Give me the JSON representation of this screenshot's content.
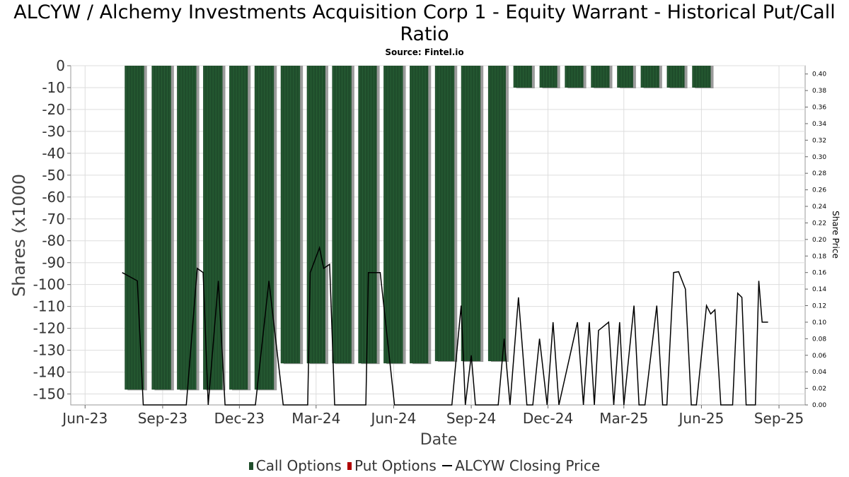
{
  "title": "ALCYW / Alchemy Investments Acquisition Corp 1 - Equity Warrant - Historical Put/Call Ratio",
  "subtitle": "Source: Fintel.io",
  "legend": {
    "call": "Call Options",
    "put": "Put Options",
    "price": "ALCYW Closing Price"
  },
  "colors": {
    "call": "#1f4d2b",
    "put": "#b00000",
    "price": "#000000",
    "grid": "#dddddd"
  },
  "chart_data": {
    "type": "bar",
    "title": "ALCYW / Alchemy Investments Acquisition Corp 1 - Equity Warrant - Historical Put/Call Ratio",
    "xlabel": "Date",
    "ylabel": "Shares (x1000",
    "y2label": "Share Price",
    "ylim": [
      -155,
      0
    ],
    "y2lim": [
      0,
      0.41
    ],
    "xlim": [
      "2023-05-15",
      "2025-10-02"
    ],
    "x_ticks": [
      "Jun-23",
      "Sep-23",
      "Dec-23",
      "Mar-24",
      "Jun-24",
      "Sep-24",
      "Dec-24",
      "Mar-25",
      "Jun-25",
      "Sep-25"
    ],
    "x_tick_dates": [
      "2023-06-01",
      "2023-09-01",
      "2023-12-01",
      "2024-03-01",
      "2024-06-01",
      "2024-09-01",
      "2024-12-01",
      "2025-03-01",
      "2025-06-01",
      "2025-09-01"
    ],
    "y_ticks": [
      0,
      -10,
      -20,
      -30,
      -40,
      -50,
      -60,
      -70,
      -80,
      -90,
      -100,
      -110,
      -120,
      -130,
      -140,
      -150
    ],
    "y2_ticks": [
      "0.00",
      "0.02",
      "0.04",
      "0.06",
      "0.08",
      "0.10",
      "0.12",
      "0.14",
      "0.16",
      "0.18",
      "0.20",
      "0.22",
      "0.24",
      "0.26",
      "0.28",
      "0.30",
      "0.32",
      "0.34",
      "0.36",
      "0.38",
      "0.40"
    ],
    "grid": true,
    "series": [
      {
        "name": "Call Options",
        "type": "bar",
        "start_dates": [
          "2023-07-18",
          "2023-08-19",
          "2023-09-18",
          "2023-10-19",
          "2023-11-19",
          "2023-12-19",
          "2024-01-19",
          "2024-02-19",
          "2024-03-20",
          "2024-04-20",
          "2024-05-20",
          "2024-06-20",
          "2024-07-20",
          "2024-08-20",
          "2024-09-21",
          "2024-10-21",
          "2024-11-21",
          "2024-12-21",
          "2025-01-21",
          "2025-02-21",
          "2025-03-21",
          "2025-04-21",
          "2025-05-21"
        ],
        "end_dates": [
          "2023-08-10",
          "2023-09-11",
          "2023-10-11",
          "2023-11-11",
          "2023-12-11",
          "2024-01-11",
          "2024-02-11",
          "2024-03-12",
          "2024-04-12",
          "2024-05-12",
          "2024-06-12",
          "2024-07-12",
          "2024-08-12",
          "2024-09-12",
          "2024-10-12",
          "2024-11-12",
          "2024-12-12",
          "2025-01-12",
          "2025-02-12",
          "2025-03-12",
          "2025-04-12",
          "2025-05-12",
          "2025-06-12"
        ],
        "values": [
          -148,
          -148,
          -148,
          -148,
          -148,
          -148,
          -136,
          -136,
          -136,
          -136,
          -136,
          -136,
          -135,
          -135,
          -135,
          -10,
          -10,
          -10,
          -10,
          -10,
          -10,
          -10,
          -10
        ]
      },
      {
        "name": "Put Options",
        "type": "bar",
        "values": []
      },
      {
        "name": "ALCYW Closing Price",
        "type": "line",
        "axis": "right",
        "x": [
          "2023-07-15",
          "2023-08-02",
          "2023-08-09",
          "2023-08-30",
          "2023-09-29",
          "2023-10-12",
          "2023-10-19",
          "2023-10-25",
          "2023-11-06",
          "2023-11-14",
          "2023-11-30",
          "2023-12-20",
          "2024-01-05",
          "2024-01-22",
          "2024-02-20",
          "2024-02-23",
          "2024-03-05",
          "2024-03-10",
          "2024-03-17",
          "2024-03-23",
          "2024-04-29",
          "2024-05-02",
          "2024-05-16",
          "2024-06-02",
          "2024-06-25",
          "2024-07-20",
          "2024-08-09",
          "2024-08-20",
          "2024-08-25",
          "2024-09-01",
          "2024-09-06",
          "2024-10-03",
          "2024-10-10",
          "2024-10-17",
          "2024-10-27",
          "2024-11-06",
          "2024-11-13",
          "2024-11-21",
          "2024-11-30",
          "2024-12-07",
          "2024-12-14",
          "2025-01-05",
          "2025-01-12",
          "2025-01-19",
          "2025-01-25",
          "2025-01-30",
          "2025-02-11",
          "2025-02-17",
          "2025-02-24",
          "2025-03-01",
          "2025-03-13",
          "2025-03-19",
          "2025-03-26",
          "2025-04-09",
          "2025-04-16",
          "2025-04-21",
          "2025-04-29",
          "2025-05-05",
          "2025-05-13",
          "2025-05-20",
          "2025-05-26",
          "2025-06-07",
          "2025-06-12",
          "2025-06-17",
          "2025-06-24",
          "2025-07-08",
          "2025-07-14",
          "2025-07-19",
          "2025-07-24",
          "2025-08-04",
          "2025-08-08",
          "2025-08-12",
          "2025-08-19"
        ],
        "values": [
          0.16,
          0.15,
          0.0,
          0.0,
          0.0,
          0.165,
          0.16,
          0.0,
          0.15,
          0.0,
          0.0,
          0.0,
          0.15,
          0.0,
          0.0,
          0.16,
          0.19,
          0.165,
          0.17,
          0.0,
          0.0,
          0.16,
          0.16,
          0.0,
          0.0,
          0.0,
          0.0,
          0.12,
          0.0,
          0.06,
          0.0,
          0.0,
          0.08,
          0.0,
          0.13,
          0.0,
          0.0,
          0.08,
          0.0,
          0.1,
          0.0,
          0.1,
          0.0,
          0.1,
          0.0,
          0.09,
          0.1,
          0.0,
          0.1,
          0.0,
          0.12,
          0.0,
          0.0,
          0.12,
          0.0,
          0.0,
          0.16,
          0.161,
          0.14,
          0.0,
          0.0,
          0.12,
          0.11,
          0.115,
          0.0,
          0.0,
          0.135,
          0.13,
          0.0,
          0.0,
          0.15,
          0.1,
          0.1
        ]
      }
    ]
  }
}
